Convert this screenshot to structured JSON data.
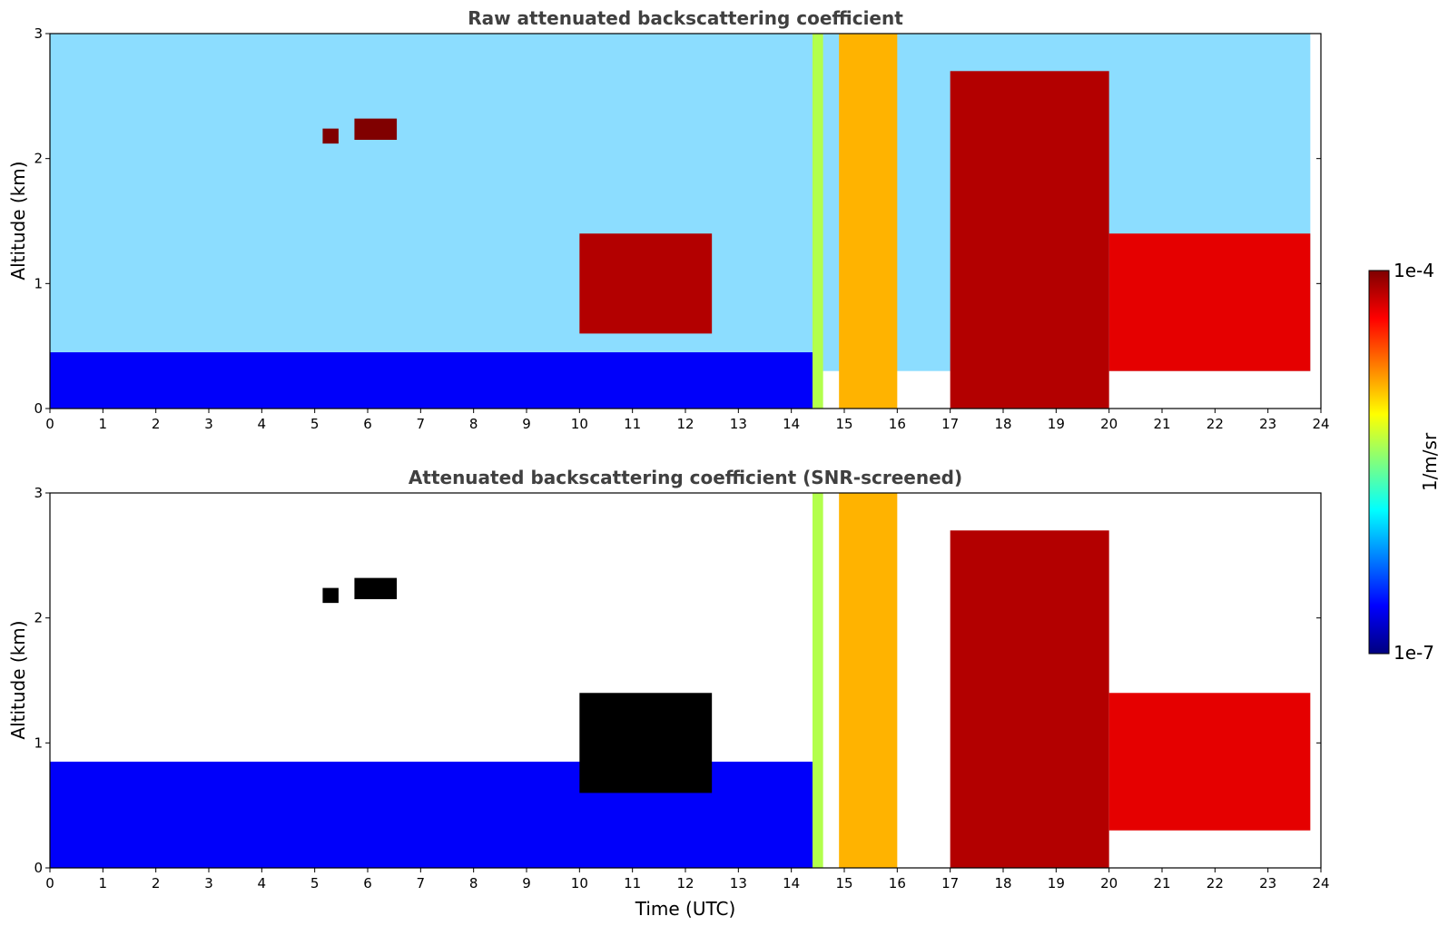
{
  "chart_data": [
    {
      "type": "heatmap",
      "title": "Raw attenuated backscattering coefficient",
      "xlabel": "",
      "ylabel": "Altitude (km)",
      "xlim": [
        0,
        24
      ],
      "ylim": [
        0,
        3
      ],
      "x_ticks": [
        "0",
        "1",
        "2",
        "3",
        "4",
        "5",
        "6",
        "7",
        "8",
        "9",
        "10",
        "11",
        "12",
        "13",
        "14",
        "15",
        "16",
        "17",
        "18",
        "19",
        "20",
        "21",
        "22",
        "23",
        "24"
      ],
      "y_ticks": [
        "0",
        "1",
        "2",
        "3"
      ],
      "colormap": "jet",
      "color_scale": "log",
      "features": [
        {
          "kind": "noise_background",
          "x": [
            0,
            23.8
          ],
          "y": [
            0.3,
            3
          ],
          "level": 0.3
        },
        {
          "kind": "boundary_layer",
          "x": [
            0,
            14.4
          ],
          "y": [
            0,
            0.45
          ],
          "level": 0.12
        },
        {
          "kind": "elevated_cloud",
          "x": [
            5.15,
            5.45
          ],
          "y": [
            2.12,
            2.24
          ],
          "level": 1.0
        },
        {
          "kind": "elevated_cloud",
          "x": [
            5.75,
            6.55
          ],
          "y": [
            2.15,
            2.32
          ],
          "level": 1.0
        },
        {
          "kind": "broken_cloud",
          "x": [
            10.0,
            12.5
          ],
          "y": [
            0.6,
            1.4
          ],
          "level": 0.95
        },
        {
          "kind": "precipitation_column",
          "x": [
            14.4,
            14.6
          ],
          "y": [
            0,
            3
          ],
          "level": 0.55
        },
        {
          "kind": "precipitation_column",
          "x": [
            14.9,
            16.0
          ],
          "y": [
            0,
            3
          ],
          "level": 0.7
        },
        {
          "kind": "descending_cloud",
          "x": [
            17.0,
            20.0
          ],
          "y": [
            0,
            2.7
          ],
          "level": 0.95
        },
        {
          "kind": "cloud_layer",
          "x": [
            20.0,
            23.8
          ],
          "y": [
            0.3,
            1.4
          ],
          "level": 0.9
        }
      ]
    },
    {
      "type": "heatmap",
      "title": "Attenuated backscattering coefficient (SNR-screened)",
      "xlabel": "Time (UTC)",
      "ylabel": "Altitude (km)",
      "xlim": [
        0,
        24
      ],
      "ylim": [
        0,
        3
      ],
      "x_ticks": [
        "0",
        "1",
        "2",
        "3",
        "4",
        "5",
        "6",
        "7",
        "8",
        "9",
        "10",
        "11",
        "12",
        "13",
        "14",
        "15",
        "16",
        "17",
        "18",
        "19",
        "20",
        "21",
        "22",
        "23",
        "24"
      ],
      "y_ticks": [
        "0",
        "1",
        "2",
        "3"
      ],
      "colormap": "jet",
      "color_scale": "log",
      "features": [
        {
          "kind": "boundary_layer",
          "x": [
            0,
            14.4
          ],
          "y": [
            0,
            0.85
          ],
          "level": 0.12
        },
        {
          "kind": "elevated_cloud",
          "x": [
            5.15,
            5.45
          ],
          "y": [
            2.12,
            2.24
          ],
          "level": 0.0
        },
        {
          "kind": "elevated_cloud",
          "x": [
            5.75,
            6.55
          ],
          "y": [
            2.15,
            2.32
          ],
          "level": 0.0
        },
        {
          "kind": "broken_cloud",
          "x": [
            10.0,
            12.5
          ],
          "y": [
            0.6,
            1.4
          ],
          "level": 0.0
        },
        {
          "kind": "precipitation_column",
          "x": [
            14.4,
            14.6
          ],
          "y": [
            0,
            3
          ],
          "level": 0.55
        },
        {
          "kind": "precipitation_column",
          "x": [
            14.9,
            16.0
          ],
          "y": [
            0,
            3
          ],
          "level": 0.7
        },
        {
          "kind": "descending_cloud",
          "x": [
            17.0,
            20.0
          ],
          "y": [
            0,
            2.7
          ],
          "level": 0.95
        },
        {
          "kind": "cloud_layer",
          "x": [
            20.0,
            23.8
          ],
          "y": [
            0.3,
            1.4
          ],
          "level": 0.9
        }
      ]
    }
  ],
  "colorbar": {
    "label": "1/m/sr",
    "max_label": "1e-4",
    "min_label": "1e-7",
    "colors": [
      "#7f0000",
      "#ff0000",
      "#ff7f00",
      "#ffff00",
      "#7fff7f",
      "#00ffff",
      "#007fff",
      "#0000ff",
      "#00007f"
    ]
  }
}
